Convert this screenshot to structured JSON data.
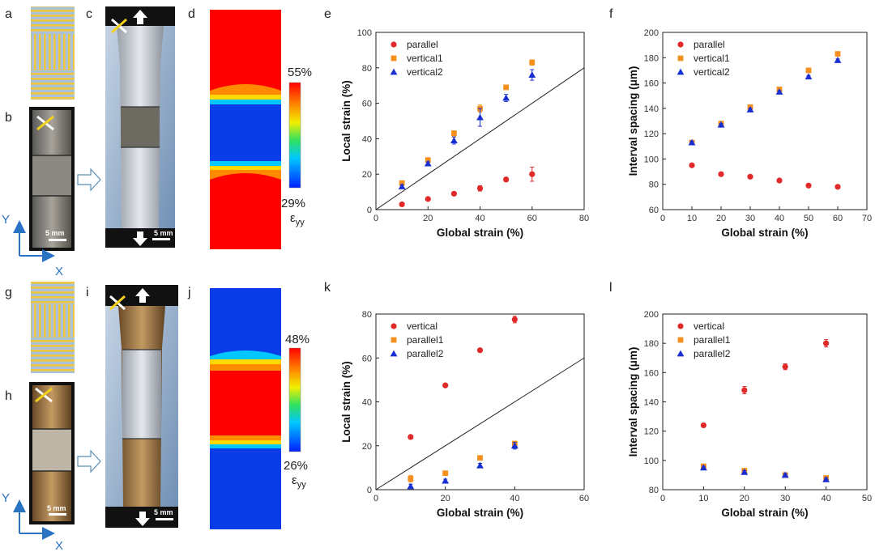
{
  "colors": {
    "red": "#e02a2a",
    "orange": "#f5901e",
    "blue": "#1a2fd0",
    "axis_blue": "#2a73c2"
  },
  "panels": {
    "a": "a",
    "b": "b",
    "c": "c",
    "d": "d",
    "e": "e",
    "f": "f",
    "g": "g",
    "h": "h",
    "i": "i",
    "j": "j",
    "k": "k",
    "l": "l"
  },
  "photos": {
    "scale_bar": "5 mm",
    "axis_x": "X",
    "axis_y": "Y"
  },
  "colorbars": [
    {
      "max_label": "55%",
      "min_label": "29%",
      "strain_label": "ε",
      "strain_sub": "yy"
    },
    {
      "max_label": "48%",
      "min_label": "26%",
      "strain_label": "ε",
      "strain_sub": "yy"
    }
  ],
  "chart_data": [
    {
      "id": "e",
      "type": "scatter",
      "xlabel": "Global strain (%)",
      "ylabel": "Local strain (%)",
      "xlim": [
        0,
        80
      ],
      "ylim": [
        0,
        100
      ],
      "xticks": [
        0,
        20,
        40,
        60,
        80
      ],
      "yticks": [
        0,
        20,
        40,
        60,
        80,
        100
      ],
      "reference_line": {
        "from": [
          0,
          0
        ],
        "to": [
          80,
          80
        ]
      },
      "series": [
        {
          "name": "parallel",
          "marker": "circle",
          "color": "#e02a2a",
          "x": [
            10,
            20,
            30,
            40,
            50,
            60
          ],
          "y": [
            3,
            6,
            9,
            12,
            17,
            20
          ],
          "err": [
            0.8,
            0.8,
            1,
            1.5,
            1.2,
            4
          ]
        },
        {
          "name": "vertical1",
          "marker": "square",
          "color": "#f5901e",
          "x": [
            10,
            20,
            30,
            40,
            50,
            60
          ],
          "y": [
            15,
            28,
            43,
            57,
            69,
            83
          ],
          "err": [
            1,
            1,
            1.5,
            2,
            1,
            1.5
          ]
        },
        {
          "name": "vertical2",
          "marker": "triangle",
          "color": "#1a2fd0",
          "x": [
            10,
            20,
            30,
            40,
            50,
            60
          ],
          "y": [
            13,
            26,
            39,
            52,
            63,
            76
          ],
          "err": [
            1,
            1,
            2,
            5,
            2,
            3
          ]
        }
      ]
    },
    {
      "id": "f",
      "type": "scatter",
      "xlabel": "Global strain (%)",
      "ylabel": "Interval spacing (μm)",
      "xlim": [
        0,
        70
      ],
      "ylim": [
        60,
        200
      ],
      "xticks": [
        0,
        10,
        20,
        30,
        40,
        50,
        60,
        70
      ],
      "yticks": [
        60,
        80,
        100,
        120,
        140,
        160,
        180,
        200
      ],
      "series": [
        {
          "name": "parallel",
          "marker": "circle",
          "color": "#e02a2a",
          "x": [
            10,
            20,
            30,
            40,
            50,
            60
          ],
          "y": [
            95,
            88,
            86,
            83,
            79,
            78
          ],
          "err": [
            1,
            0.8,
            0.8,
            0.8,
            0.8,
            0.8
          ]
        },
        {
          "name": "vertical1",
          "marker": "square",
          "color": "#f5901e",
          "x": [
            10,
            20,
            30,
            40,
            50,
            60
          ],
          "y": [
            113,
            128,
            141,
            155,
            170,
            183
          ],
          "err": [
            1,
            1,
            1,
            1,
            1,
            1
          ]
        },
        {
          "name": "vertical2",
          "marker": "triangle",
          "color": "#1a2fd0",
          "x": [
            10,
            20,
            30,
            40,
            50,
            60
          ],
          "y": [
            113,
            127,
            139,
            153,
            165,
            178
          ],
          "err": [
            1,
            1,
            1,
            1,
            1,
            1
          ]
        }
      ]
    },
    {
      "id": "k",
      "type": "scatter",
      "xlabel": "Global strain (%)",
      "ylabel": "Local strain (%)",
      "xlim": [
        0,
        60
      ],
      "ylim": [
        0,
        80
      ],
      "xticks": [
        0,
        20,
        40,
        60
      ],
      "yticks": [
        0,
        20,
        40,
        60,
        80
      ],
      "reference_line": {
        "from": [
          0,
          0
        ],
        "to": [
          60,
          60
        ]
      },
      "series": [
        {
          "name": "vertical",
          "marker": "circle",
          "color": "#e02a2a",
          "x": [
            10,
            20,
            30,
            40
          ],
          "y": [
            24,
            47.5,
            63.5,
            77.5
          ],
          "err": [
            0.8,
            0.8,
            0.8,
            1.5
          ]
        },
        {
          "name": "parallel1",
          "marker": "square",
          "color": "#f5901e",
          "x": [
            10,
            20,
            30,
            40
          ],
          "y": [
            5,
            7.5,
            14.5,
            21
          ],
          "err": [
            1.5,
            0.8,
            0.8,
            1
          ]
        },
        {
          "name": "parallel2",
          "marker": "triangle",
          "color": "#1a2fd0",
          "x": [
            10,
            20,
            30,
            40
          ],
          "y": [
            1.5,
            4,
            11,
            20
          ],
          "err": [
            1,
            0.8,
            1,
            1.5
          ]
        }
      ]
    },
    {
      "id": "l",
      "type": "scatter",
      "xlabel": "Global strain (%)",
      "ylabel": "Interval spacing (μm)",
      "xlim": [
        0,
        50
      ],
      "ylim": [
        80,
        200
      ],
      "xticks": [
        0,
        10,
        20,
        30,
        40,
        50
      ],
      "yticks": [
        80,
        100,
        120,
        140,
        160,
        180,
        200
      ],
      "series": [
        {
          "name": "vertical",
          "marker": "circle",
          "color": "#e02a2a",
          "x": [
            10,
            20,
            30,
            40
          ],
          "y": [
            124,
            148,
            164,
            180
          ],
          "err": [
            1,
            2.5,
            2,
            2.5
          ]
        },
        {
          "name": "parallel1",
          "marker": "square",
          "color": "#f5901e",
          "x": [
            10,
            20,
            30,
            40
          ],
          "y": [
            96,
            93,
            90,
            88
          ],
          "err": [
            1,
            1,
            1,
            1
          ]
        },
        {
          "name": "parallel2",
          "marker": "triangle",
          "color": "#1a2fd0",
          "x": [
            10,
            20,
            30,
            40
          ],
          "y": [
            95,
            92,
            90,
            87
          ],
          "err": [
            1,
            1,
            1,
            1
          ]
        }
      ]
    }
  ]
}
